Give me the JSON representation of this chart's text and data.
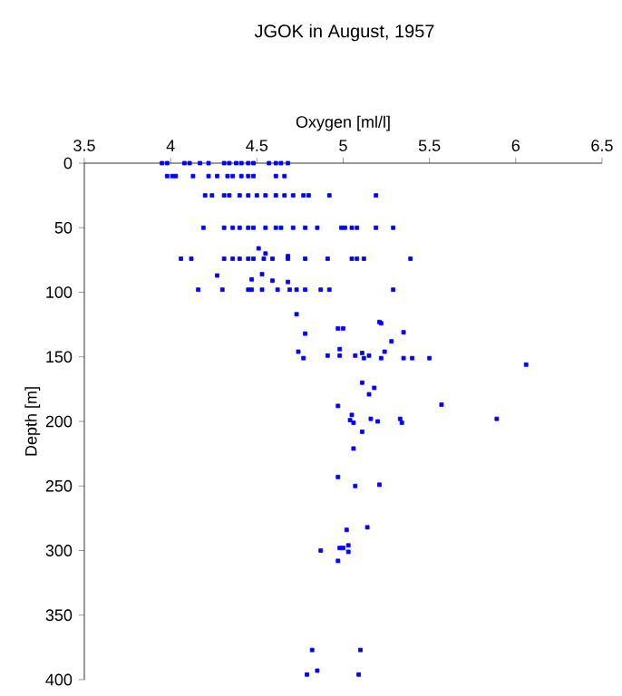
{
  "chart_data": {
    "type": "scatter",
    "title": "JGOK in August, 1957",
    "xlabel": "Oxygen [ml/l]",
    "ylabel": "Depth [m]",
    "xlim": [
      3.5,
      6.5
    ],
    "ylim": [
      400,
      0
    ],
    "xticks": [
      3.5,
      4,
      4.5,
      5,
      5.5,
      6,
      6.5
    ],
    "yticks": [
      0,
      50,
      100,
      150,
      200,
      250,
      300,
      350,
      400
    ],
    "marker": "square",
    "series": [
      {
        "color": "#0000ff",
        "x": [
          3.95,
          3.98,
          4.08,
          4.11,
          4.17,
          4.22,
          4.31,
          4.34,
          4.38,
          4.41,
          4.45,
          4.48,
          4.57,
          4.61,
          4.64,
          4.68,
          3.98,
          4.01,
          4.03,
          4.13,
          4.22,
          4.27,
          4.33,
          4.36,
          4.41,
          4.45,
          4.48,
          4.61,
          4.66,
          4.2,
          4.24,
          4.31,
          4.34,
          4.4,
          4.45,
          4.5,
          4.55,
          4.61,
          4.66,
          4.71,
          4.77,
          4.8,
          4.92,
          5.19,
          4.19,
          4.31,
          4.36,
          4.4,
          4.45,
          4.48,
          4.55,
          4.61,
          4.64,
          4.71,
          4.78,
          4.85,
          4.99,
          5.01,
          5.05,
          5.08,
          5.19,
          5.29,
          4.06,
          4.12,
          4.31,
          4.36,
          4.4,
          4.45,
          4.48,
          4.54,
          4.59,
          4.68,
          4.78,
          4.91,
          5.05,
          5.08,
          5.12,
          5.39,
          4.51,
          4.55,
          4.68,
          4.27,
          4.47,
          4.53,
          4.59,
          4.68,
          4.16,
          4.3,
          4.45,
          4.47,
          4.53,
          4.62,
          4.69,
          4.73,
          4.78,
          4.87,
          4.92,
          5.29,
          4.73,
          5.21,
          4.97,
          5.0,
          5.22,
          4.78,
          5.35,
          5.28,
          4.74,
          4.77,
          4.91,
          4.98,
          4.98,
          5.07,
          5.11,
          5.12,
          5.15,
          5.24,
          5.22,
          5.35,
          5.4,
          5.5,
          6.06,
          5.11,
          5.18,
          5.15,
          4.97,
          5.57,
          5.05,
          5.04,
          5.06,
          5.16,
          5.2,
          5.33,
          5.34,
          5.89,
          5.11,
          5.06,
          4.97,
          5.07,
          5.21,
          5.02,
          5.14,
          4.87,
          4.98,
          5.0,
          5.03,
          5.03,
          4.97,
          4.82,
          5.1,
          4.85,
          4.79,
          5.09
        ],
        "values": [
          0,
          0,
          0,
          0,
          0,
          0,
          0,
          0,
          0,
          0,
          0,
          0,
          0,
          0,
          0,
          0,
          10,
          10,
          10,
          10,
          10,
          10,
          10,
          10,
          10,
          10,
          10,
          10,
          10,
          25,
          25,
          25,
          25,
          25,
          25,
          25,
          25,
          25,
          25,
          25,
          25,
          25,
          25,
          25,
          50,
          50,
          50,
          50,
          50,
          50,
          50,
          50,
          50,
          50,
          50,
          50,
          50,
          50,
          50,
          50,
          50,
          50,
          74,
          74,
          74,
          74,
          74,
          74,
          74,
          74,
          74,
          74,
          74,
          74,
          74,
          74,
          74,
          74,
          66,
          70,
          72,
          87,
          90,
          86,
          91,
          92,
          98,
          98,
          98,
          98,
          98,
          98,
          98,
          98,
          98,
          98,
          98,
          98,
          117,
          123,
          128,
          128,
          124,
          132,
          131,
          138,
          146,
          151,
          149,
          144,
          149,
          149,
          147,
          151,
          149,
          146,
          151,
          151,
          151,
          151,
          156,
          170,
          174,
          179,
          188,
          187,
          195,
          199,
          201,
          198,
          200,
          198,
          201,
          198,
          208,
          221,
          243,
          250,
          249,
          284,
          282,
          300,
          298,
          298,
          296,
          301,
          308,
          377,
          377,
          393,
          396,
          396
        ]
      }
    ]
  }
}
